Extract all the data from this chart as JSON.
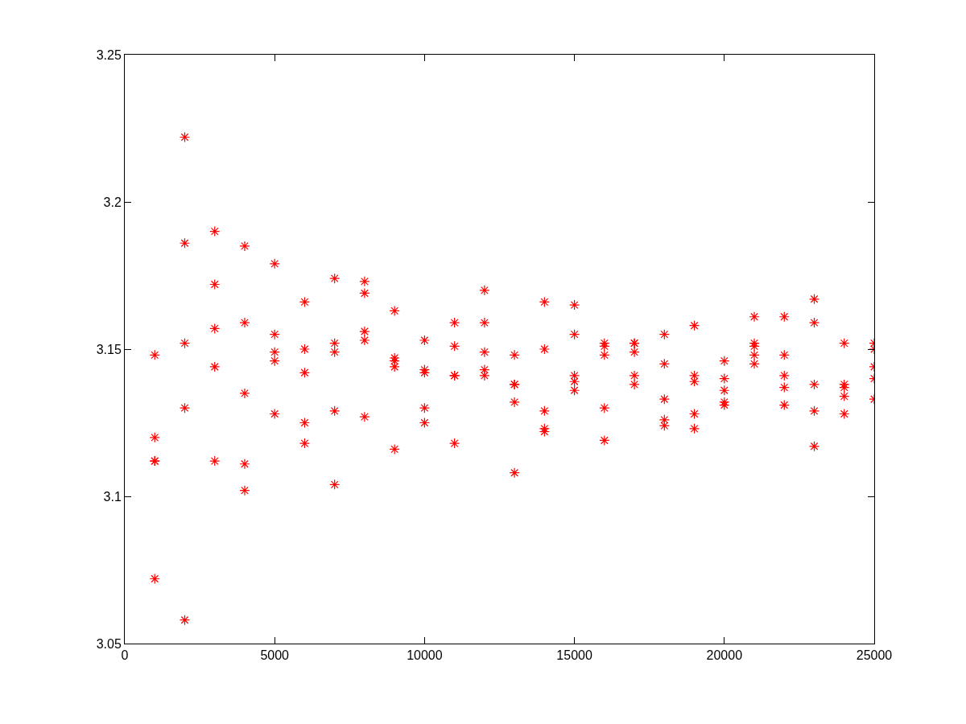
{
  "chart_data": {
    "type": "scatter",
    "marker": "cross",
    "grid": false,
    "xlim": [
      0,
      25000
    ],
    "xticks": [
      0,
      5000,
      10000,
      15000,
      20000,
      25000
    ],
    "ylim": [
      3.05,
      3.25
    ],
    "yticks": [
      3.05,
      3.1,
      3.15,
      3.2,
      3.25
    ],
    "series": [
      {
        "color": "#ff0000",
        "x": [
          1000,
          1000,
          1000,
          1000,
          1000,
          2000,
          2000,
          2000,
          2000,
          2000,
          3000,
          3000,
          3000,
          3000,
          3000,
          4000,
          4000,
          4000,
          4000,
          4000,
          5000,
          5000,
          5000,
          5000,
          5000,
          6000,
          6000,
          6000,
          6000,
          6000,
          7000,
          7000,
          7000,
          7000,
          7000,
          8000,
          8000,
          8000,
          8000,
          8000,
          9000,
          9000,
          9000,
          9000,
          9000,
          10000,
          10000,
          10000,
          10000,
          10000,
          11000,
          11000,
          11000,
          11000,
          11000,
          12000,
          12000,
          12000,
          12000,
          12000,
          13000,
          13000,
          13000,
          13000,
          13000,
          14000,
          14000,
          14000,
          14000,
          14000,
          15000,
          15000,
          15000,
          15000,
          15000,
          16000,
          16000,
          16000,
          16000,
          16000,
          17000,
          17000,
          17000,
          17000,
          17000,
          18000,
          18000,
          18000,
          18000,
          18000,
          19000,
          19000,
          19000,
          19000,
          19000,
          20000,
          20000,
          20000,
          20000,
          20000,
          21000,
          21000,
          21000,
          21000,
          21000,
          22000,
          22000,
          22000,
          22000,
          22000,
          23000,
          23000,
          23000,
          23000,
          23000,
          24000,
          24000,
          24000,
          24000,
          24000,
          25000,
          25000,
          25000,
          25000,
          25000
        ],
        "values": [
          3.148,
          3.12,
          3.112,
          3.112,
          3.072,
          3.222,
          3.186,
          3.152,
          3.13,
          3.058,
          3.19,
          3.172,
          3.157,
          3.144,
          3.112,
          3.185,
          3.159,
          3.135,
          3.111,
          3.102,
          3.179,
          3.155,
          3.149,
          3.146,
          3.128,
          3.166,
          3.15,
          3.142,
          3.125,
          3.118,
          3.174,
          3.152,
          3.149,
          3.129,
          3.104,
          3.173,
          3.169,
          3.156,
          3.153,
          3.127,
          3.163,
          3.147,
          3.146,
          3.144,
          3.116,
          3.153,
          3.143,
          3.142,
          3.13,
          3.125,
          3.159,
          3.151,
          3.141,
          3.141,
          3.118,
          3.17,
          3.159,
          3.149,
          3.143,
          3.141,
          3.148,
          3.138,
          3.138,
          3.132,
          3.108,
          3.166,
          3.15,
          3.129,
          3.123,
          3.122,
          3.165,
          3.155,
          3.141,
          3.139,
          3.136,
          3.152,
          3.151,
          3.148,
          3.13,
          3.119,
          3.152,
          3.152,
          3.149,
          3.141,
          3.138,
          3.155,
          3.145,
          3.133,
          3.126,
          3.124,
          3.158,
          3.141,
          3.139,
          3.128,
          3.123,
          3.146,
          3.14,
          3.136,
          3.132,
          3.131,
          3.161,
          3.152,
          3.151,
          3.148,
          3.145,
          3.161,
          3.148,
          3.141,
          3.137,
          3.131,
          3.167,
          3.159,
          3.138,
          3.129,
          3.117,
          3.152,
          3.138,
          3.137,
          3.134,
          3.128,
          3.152,
          3.15,
          3.144,
          3.14,
          3.133
        ]
      }
    ]
  }
}
